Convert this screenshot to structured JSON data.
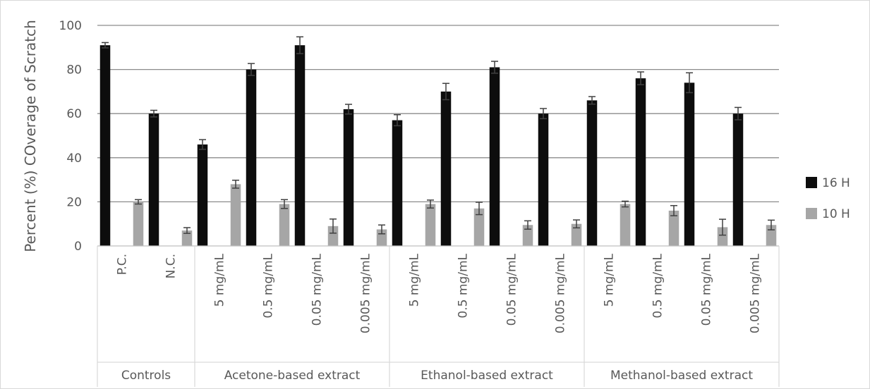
{
  "chart_data": {
    "type": "bar",
    "title": "",
    "ylabel": "Percent (%) COverage of Scratch",
    "ylim": [
      0,
      100
    ],
    "yticks": [
      0,
      20,
      40,
      60,
      80,
      100
    ],
    "grid": true,
    "legend_position": "right",
    "groups": [
      {
        "label": "Controls",
        "categories": [
          "P.C.",
          "N.C."
        ]
      },
      {
        "label": "Acetone-based extract",
        "categories": [
          "5 mg/mL",
          "0.5 mg/mL",
          "0.05 mg/mL",
          "0.005 mg/mL"
        ]
      },
      {
        "label": "Ethanol-based extract",
        "categories": [
          "5 mg/mL",
          "0.5 mg/mL",
          "0.05 mg/mL",
          "0.005 mg/mL"
        ]
      },
      {
        "label": "Methanol-based extract",
        "categories": [
          "5 mg/mL",
          "0.5 mg/mL",
          "0.05 mg/mL",
          "0.005 mg/mL"
        ]
      }
    ],
    "series": [
      {
        "name": "16 H",
        "color": "#0d0d0d",
        "values": [
          91,
          60,
          46,
          80,
          91,
          62,
          57,
          70,
          81,
          60,
          66,
          76,
          74,
          60
        ],
        "errors": [
          1.2,
          1.5,
          2.2,
          2.7,
          3.8,
          2.2,
          2.5,
          3.7,
          2.7,
          2.3,
          1.7,
          2.9,
          4.5,
          2.8
        ]
      },
      {
        "name": "10 H",
        "color": "#a6a6a6",
        "values": [
          20,
          7,
          28,
          19,
          9,
          7.5,
          19,
          17,
          9.5,
          10,
          19,
          16,
          8.5,
          9.5
        ],
        "errors": [
          1.0,
          1.3,
          1.8,
          2.0,
          3.2,
          2.0,
          1.8,
          2.8,
          1.9,
          1.8,
          1.3,
          2.3,
          3.6,
          2.2
        ]
      }
    ]
  }
}
